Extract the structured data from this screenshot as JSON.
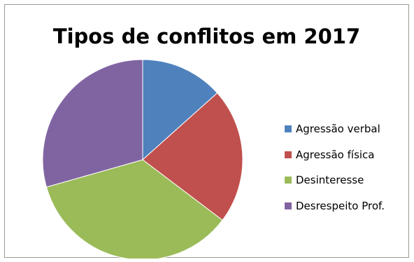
{
  "chart_data": {
    "type": "pie",
    "title": "Tipos de conflitos em 2017",
    "legend_position": "right",
    "start_angle": "12 o'clock, clockwise",
    "slices": [
      {
        "label": "Agressão verbal",
        "value": 13.4,
        "color": "#4F81BD"
      },
      {
        "label": "Agressão física",
        "value": 21.9,
        "color": "#C0504D"
      },
      {
        "label": "Desinteresse",
        "value": 35.3,
        "color": "#9BBB59"
      },
      {
        "label": "Desrespeito Prof.",
        "value": 29.4,
        "color": "#8064A2"
      }
    ]
  }
}
